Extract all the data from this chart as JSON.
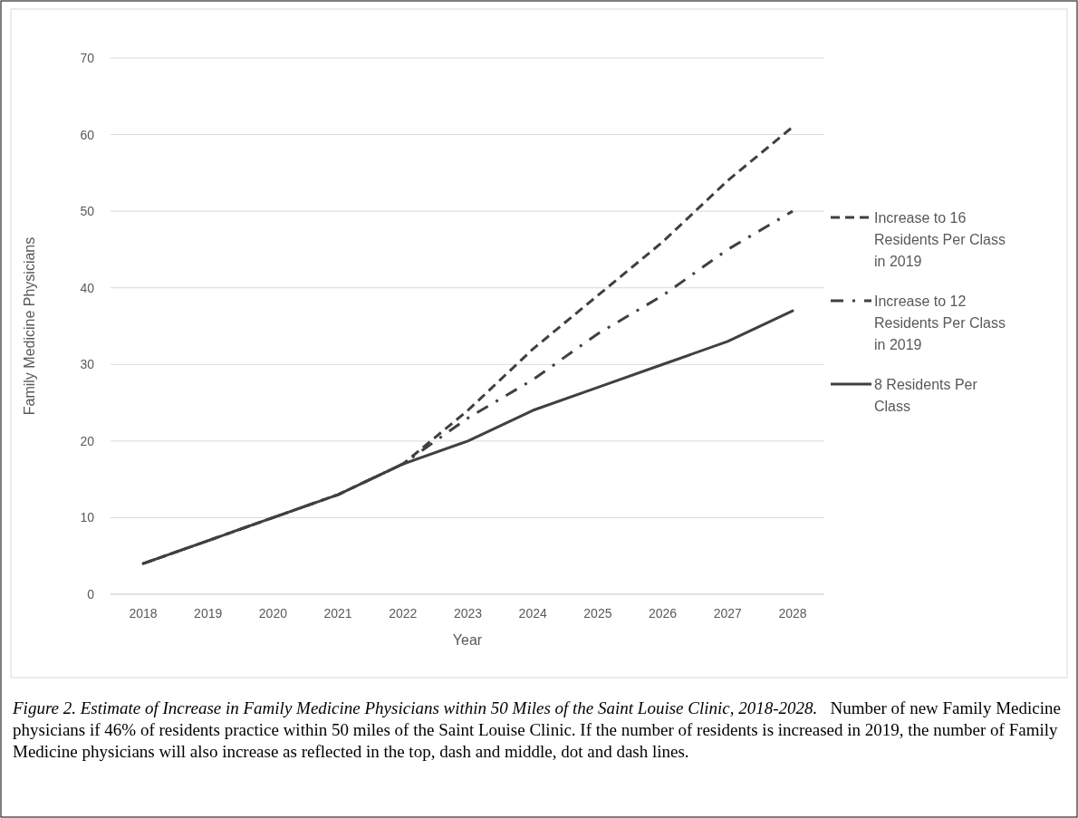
{
  "chart_data": {
    "type": "line",
    "xlabel": "Year",
    "ylabel": "Family Medicine Physicians",
    "categories": [
      "2018",
      "2019",
      "2020",
      "2021",
      "2022",
      "2023",
      "2024",
      "2025",
      "2026",
      "2027",
      "2028"
    ],
    "series": [
      {
        "name": "Increase to 16 Residents Per Class in 2019",
        "color": "#404040",
        "line_style": "dashed",
        "values": [
          4,
          7,
          10,
          13,
          17,
          24,
          32,
          39,
          46,
          54,
          61
        ]
      },
      {
        "name": "Increase to 12 Residents Per Class in 2019",
        "color": "#404040",
        "line_style": "dashdot",
        "values": [
          4,
          7,
          10,
          13,
          17,
          23,
          28,
          34,
          39,
          45,
          50
        ]
      },
      {
        "name": "8 Residents Per Class",
        "color": "#404040",
        "line_style": "solid",
        "values": [
          4,
          7,
          10,
          13,
          17,
          20,
          24,
          27,
          30,
          33,
          37
        ]
      }
    ],
    "ylim": [
      0,
      70
    ],
    "yticks": [
      0,
      10,
      20,
      30,
      40,
      50,
      60,
      70
    ],
    "grid": "y",
    "legend": "right",
    "annotations": [
      "Figure 2. Estimate of Increase in Family Medicine Physicians within 50 Miles of the Saint Louise Clinic, 2018-2028.",
      "Number of new Family Medicine physicians if 46% of residents practice within 50 miles of the Saint Louise Clinic.  If the number of residents is increased in 2019, the number of Family Medicine physicians will also increase as reflected in the top, dash and middle, dot and dash lines."
    ]
  }
}
